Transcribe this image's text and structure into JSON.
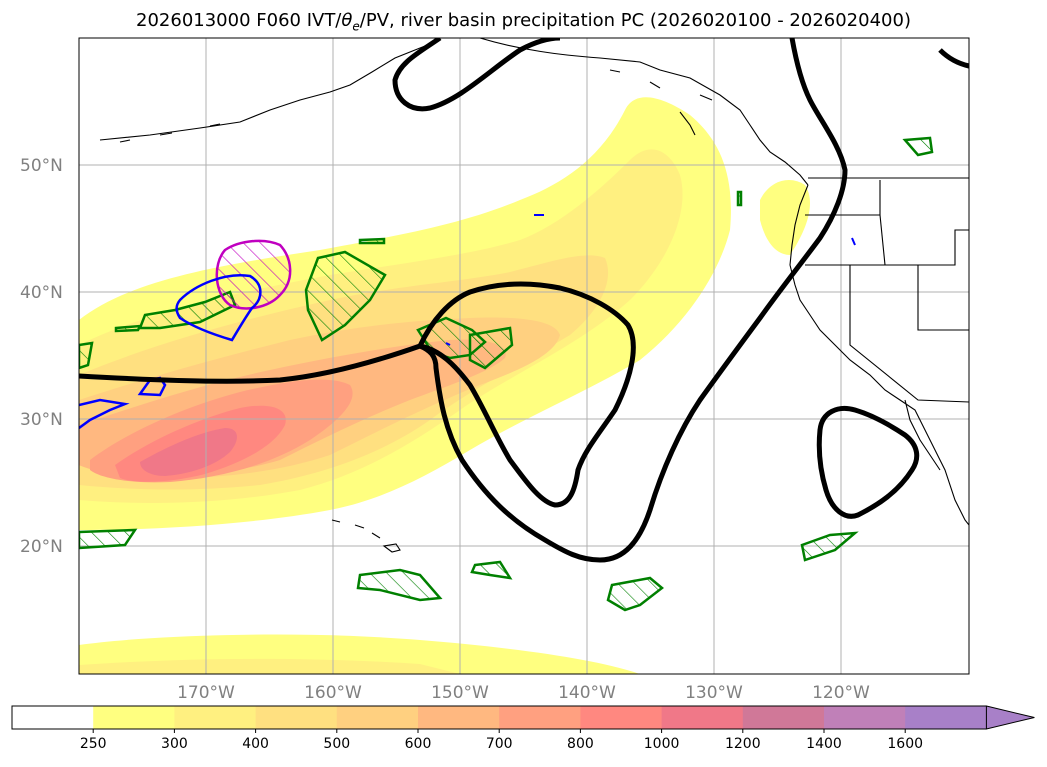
{
  "title": "2026013000 F060 IVT/θe/PV, river basin precipitation PC (2026020100 - 2026020400)",
  "title_parts": {
    "prefix": "2026013000 F060 IVT/",
    "theta": "θ",
    "sub": "e",
    "suffix": "/PV, river basin precipitation PC (2026020100 - 2026020400)"
  },
  "map": {
    "lon_range": [
      -180,
      -110
    ],
    "lat_range": [
      10,
      60
    ],
    "lat_labels": [
      {
        "lat": 50,
        "label": "50°N"
      },
      {
        "lat": 40,
        "label": "40°N"
      },
      {
        "lat": 30,
        "label": "30°N"
      },
      {
        "lat": 20,
        "label": "20°N"
      }
    ],
    "lon_labels": [
      {
        "lon": -170,
        "label": "170°W"
      },
      {
        "lon": -160,
        "label": "160°W"
      },
      {
        "lon": -150,
        "label": "150°W"
      },
      {
        "lon": -140,
        "label": "140°W"
      },
      {
        "lon": -130,
        "label": "130°W"
      },
      {
        "lon": -120,
        "label": "120°W"
      }
    ],
    "grid": true
  },
  "colorbar": {
    "levels": [
      "250",
      "300",
      "400",
      "500",
      "600",
      "700",
      "800",
      "1000",
      "1200",
      "1400",
      "1600"
    ],
    "colors": [
      "#ffffff",
      "#ffff80",
      "#fff080",
      "#ffe080",
      "#ffd080",
      "#ffb880",
      "#ffa080",
      "#ff8880",
      "#f07888",
      "#d07898",
      "#c080b8",
      "#a880c8"
    ],
    "extend": "max"
  },
  "colors": {
    "theta_e_contour": "#000000",
    "pv_contour_blue": "#0000ff",
    "pv_contour_magenta": "#c000c0",
    "basin_precip": "#008000",
    "grid": "#b0b0b0",
    "coast": "#000000"
  }
}
